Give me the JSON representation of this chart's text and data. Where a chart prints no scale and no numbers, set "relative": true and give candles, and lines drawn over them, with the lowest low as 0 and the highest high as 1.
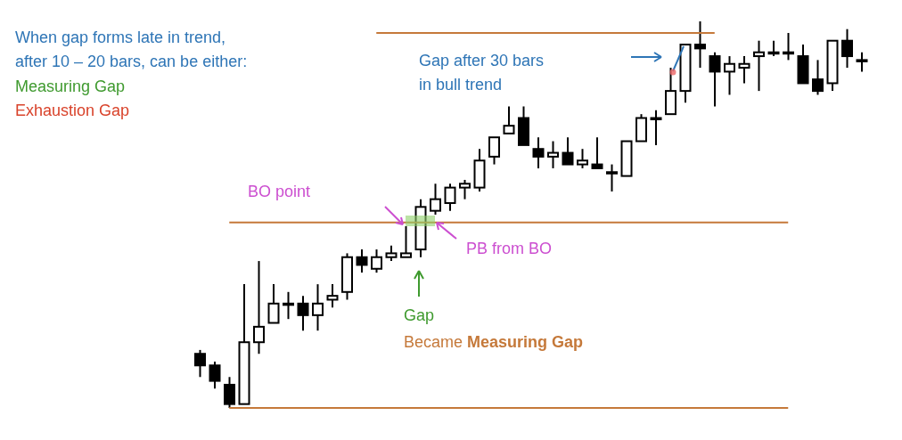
{
  "chart_data": {
    "type": "candlestick",
    "relative": true,
    "categories": [
      null,
      null,
      null,
      null,
      null,
      null,
      null,
      null,
      null,
      null,
      null,
      null,
      null,
      null,
      null,
      null,
      null,
      null,
      null,
      null,
      null,
      null,
      null,
      null,
      null,
      null,
      null,
      null,
      null,
      null,
      null,
      null,
      null,
      null,
      null,
      null,
      null,
      null,
      null,
      null,
      null,
      null,
      null,
      null,
      null,
      null
    ],
    "ohlc": [
      [
        0.14,
        0.15,
        0.08,
        0.11
      ],
      [
        0.11,
        0.12,
        0.05,
        0.07
      ],
      [
        0.06,
        0.08,
        0,
        0.01
      ],
      [
        0.01,
        0.32,
        0.01,
        0.17
      ],
      [
        0.17,
        0.38,
        0.14,
        0.21
      ],
      [
        0.22,
        0.32,
        0.22,
        0.27
      ],
      [
        0.27,
        0.3,
        0.23,
        0.27
      ],
      [
        0.27,
        0.29,
        0.2,
        0.24
      ],
      [
        0.24,
        0.32,
        0.2,
        0.27
      ],
      [
        0.28,
        0.32,
        0.26,
        0.29
      ],
      [
        0.3,
        0.4,
        0.28,
        0.39
      ],
      [
        0.39,
        0.41,
        0.35,
        0.37
      ],
      [
        0.36,
        0.41,
        0.35,
        0.39
      ],
      [
        0.39,
        0.42,
        0.38,
        0.4
      ],
      [
        0.39,
        0.47,
        0.39,
        0.4
      ],
      [
        0.41,
        0.54,
        0.39,
        0.52
      ],
      [
        0.51,
        0.58,
        0.5,
        0.54
      ],
      [
        0.53,
        0.58,
        0.51,
        0.57
      ],
      [
        0.57,
        0.59,
        0.54,
        0.58
      ],
      [
        0.57,
        0.67,
        0.56,
        0.64
      ],
      [
        0.65,
        0.7,
        0.63,
        0.7
      ],
      [
        0.71,
        0.78,
        0.71,
        0.73
      ],
      [
        0.75,
        0.78,
        0.68,
        0.68
      ],
      [
        0.67,
        0.7,
        0.62,
        0.65
      ],
      [
        0.65,
        0.69,
        0.62,
        0.66
      ],
      [
        0.66,
        0.7,
        0.63,
        0.63
      ],
      [
        0.63,
        0.67,
        0.62,
        0.64
      ],
      [
        0.63,
        0.7,
        0.62,
        0.62
      ],
      [
        0.61,
        0.63,
        0.56,
        0.61
      ],
      [
        0.6,
        0.69,
        0.6,
        0.69
      ],
      [
        0.69,
        0.76,
        0.69,
        0.75
      ],
      [
        0.75,
        0.77,
        0.68,
        0.75
      ],
      [
        0.76,
        0.88,
        0.76,
        0.82
      ],
      [
        0.82,
        0.94,
        0.79,
        0.94
      ],
      [
        0.94,
        1,
        0.88,
        0.93
      ],
      [
        0.91,
        0.92,
        0.78,
        0.87
      ],
      [
        0.87,
        0.91,
        0.81,
        0.89
      ],
      [
        0.88,
        0.91,
        0.84,
        0.89
      ],
      [
        0.91,
        0.95,
        0.82,
        0.92
      ],
      [
        0.92,
        0.95,
        0.91,
        0.92
      ],
      [
        0.92,
        0.97,
        0.9,
        0.92
      ],
      [
        0.91,
        0.94,
        0.84,
        0.84
      ],
      [
        0.85,
        0.9,
        0.81,
        0.82
      ],
      [
        0.84,
        0.95,
        0.82,
        0.95
      ],
      [
        0.95,
        0.98,
        0.88,
        0.91
      ],
      [
        0.9,
        0.92,
        0.87,
        0.9
      ]
    ],
    "ref_lines": [
      {
        "axis": "y",
        "value": 0.97,
        "color": "#c5793a"
      },
      {
        "axis": "y",
        "value": 0.48,
        "color": "#c5793a"
      },
      {
        "axis": "y",
        "value": 0,
        "color": "#c5793a"
      }
    ],
    "annotations": [
      "When gap forms late in trend,",
      "after 10 – 20 bars, can be either:",
      "Measuring Gap",
      "Exhaustion Gap",
      "BO point",
      "PB from BO",
      "Gap",
      "Became Measuring Gap",
      "Gap after 30 bars",
      "in bull trend"
    ]
  }
}
